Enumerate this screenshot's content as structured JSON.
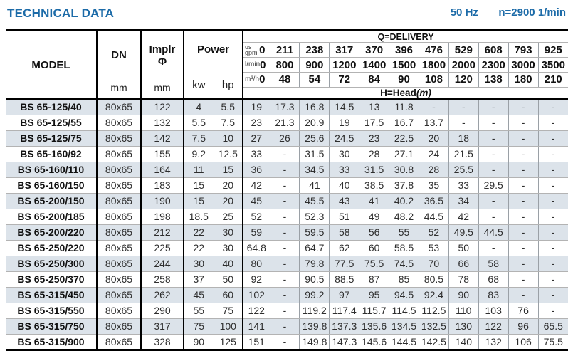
{
  "page": {
    "title": "TECHNICAL DATA",
    "frequency": "50 Hz",
    "speed": "n=2900 1/min"
  },
  "colors": {
    "accent_blue": "#1c6ba8",
    "stripe": "#dce3ea",
    "grid_thin": "#9aa0a6",
    "grid_thick": "#000000"
  },
  "table": {
    "headers": {
      "model": "MODEL",
      "dn": "DN",
      "dn_unit": "mm",
      "implr_line1": "Implr",
      "implr_line2": "Φ",
      "implr_unit": "mm",
      "power": "Power",
      "kw": "kw",
      "hp": "hp",
      "delivery_title": "Q=DELIVERY",
      "head_title": "H=Head",
      "head_unit": "(m)"
    },
    "delivery": [
      {
        "key": "us-gpm",
        "lines": [
          "us",
          "gpm"
        ],
        "zero": "0",
        "values": [
          "211",
          "238",
          "317",
          "370",
          "396",
          "476",
          "529",
          "608",
          "793",
          "925"
        ]
      },
      {
        "key": "l-min",
        "lines": [
          "l/min"
        ],
        "zero": "0",
        "values": [
          "800",
          "900",
          "1200",
          "1400",
          "1500",
          "1800",
          "2000",
          "2300",
          "3000",
          "3500"
        ]
      },
      {
        "key": "m3-h",
        "lines": [
          "m³/h"
        ],
        "zero": "0",
        "values": [
          "48",
          "54",
          "72",
          "84",
          "90",
          "108",
          "120",
          "138",
          "180",
          "210"
        ]
      }
    ],
    "rows": [
      {
        "model": "BS 65-125/40",
        "dn": "80x65",
        "implr": "122",
        "kw": "4",
        "hp": "5.5",
        "head": [
          "19",
          "17.3",
          "16.8",
          "14.5",
          "13",
          "11.8",
          "-",
          "-",
          "-",
          "-",
          "-"
        ]
      },
      {
        "model": "BS 65-125/55",
        "dn": "80x65",
        "implr": "132",
        "kw": "5.5",
        "hp": "7.5",
        "head": [
          "23",
          "21.3",
          "20.9",
          "19",
          "17.5",
          "16.7",
          "13.7",
          "-",
          "-",
          "-",
          "-"
        ]
      },
      {
        "model": "BS 65-125/75",
        "dn": "80x65",
        "implr": "142",
        "kw": "7.5",
        "hp": "10",
        "head": [
          "27",
          "26",
          "25.6",
          "24.5",
          "23",
          "22.5",
          "20",
          "18",
          "-",
          "-",
          "-"
        ]
      },
      {
        "model": "BS 65-160/92",
        "dn": "80x65",
        "implr": "155",
        "kw": "9.2",
        "hp": "12.5",
        "head": [
          "33",
          "-",
          "31.5",
          "30",
          "28",
          "27.1",
          "24",
          "21.5",
          "-",
          "-",
          "-"
        ]
      },
      {
        "model": "BS 65-160/110",
        "dn": "80x65",
        "implr": "164",
        "kw": "11",
        "hp": "15",
        "head": [
          "36",
          "-",
          "34.5",
          "33",
          "31.5",
          "30.8",
          "28",
          "25.5",
          "-",
          "-",
          "-"
        ]
      },
      {
        "model": "BS 65-160/150",
        "dn": "80x65",
        "implr": "183",
        "kw": "15",
        "hp": "20",
        "head": [
          "42",
          "-",
          "41",
          "40",
          "38.5",
          "37.8",
          "35",
          "33",
          "29.5",
          "-",
          "-"
        ]
      },
      {
        "model": "BS 65-200/150",
        "dn": "80x65",
        "implr": "190",
        "kw": "15",
        "hp": "20",
        "head": [
          "45",
          "-",
          "45.5",
          "43",
          "41",
          "40.2",
          "36.5",
          "34",
          "-",
          "-",
          "-"
        ]
      },
      {
        "model": "BS 65-200/185",
        "dn": "80x65",
        "implr": "198",
        "kw": "18.5",
        "hp": "25",
        "head": [
          "52",
          "-",
          "52.3",
          "51",
          "49",
          "48.2",
          "44.5",
          "42",
          "-",
          "-",
          "-"
        ]
      },
      {
        "model": "BS 65-200/220",
        "dn": "80x65",
        "implr": "212",
        "kw": "22",
        "hp": "30",
        "head": [
          "59",
          "-",
          "59.5",
          "58",
          "56",
          "55",
          "52",
          "49.5",
          "44.5",
          "-",
          "-"
        ]
      },
      {
        "model": "BS 65-250/220",
        "dn": "80x65",
        "implr": "225",
        "kw": "22",
        "hp": "30",
        "head": [
          "64.8",
          "-",
          "64.7",
          "62",
          "60",
          "58.5",
          "53",
          "50",
          "-",
          "-",
          "-"
        ]
      },
      {
        "model": "BS 65-250/300",
        "dn": "80x65",
        "implr": "244",
        "kw": "30",
        "hp": "40",
        "head": [
          "80",
          "-",
          "79.8",
          "77.5",
          "75.5",
          "74.5",
          "70",
          "66",
          "58",
          "-",
          "-"
        ]
      },
      {
        "model": "BS 65-250/370",
        "dn": "80x65",
        "implr": "258",
        "kw": "37",
        "hp": "50",
        "head": [
          "92",
          "-",
          "90.5",
          "88.5",
          "87",
          "85",
          "80.5",
          "78",
          "68",
          "-",
          "-"
        ]
      },
      {
        "model": "BS 65-315/450",
        "dn": "80x65",
        "implr": "262",
        "kw": "45",
        "hp": "60",
        "head": [
          "102",
          "-",
          "99.2",
          "97",
          "95",
          "94.5",
          "92.4",
          "90",
          "83",
          "-",
          "-"
        ]
      },
      {
        "model": "BS 65-315/550",
        "dn": "80x65",
        "implr": "290",
        "kw": "55",
        "hp": "75",
        "head": [
          "122",
          "-",
          "119.2",
          "117.4",
          "115.7",
          "114.5",
          "112.5",
          "110",
          "103",
          "76",
          "-"
        ]
      },
      {
        "model": "BS 65-315/750",
        "dn": "80x65",
        "implr": "317",
        "kw": "75",
        "hp": "100",
        "head": [
          "141",
          "-",
          "139.8",
          "137.3",
          "135.6",
          "134.5",
          "132.5",
          "130",
          "122",
          "96",
          "65.5"
        ]
      },
      {
        "model": "BS 65-315/900",
        "dn": "80x65",
        "implr": "328",
        "kw": "90",
        "hp": "125",
        "head": [
          "151",
          "-",
          "149.8",
          "147.3",
          "145.6",
          "144.5",
          "142.5",
          "140",
          "132",
          "106",
          "75.5"
        ]
      }
    ]
  }
}
